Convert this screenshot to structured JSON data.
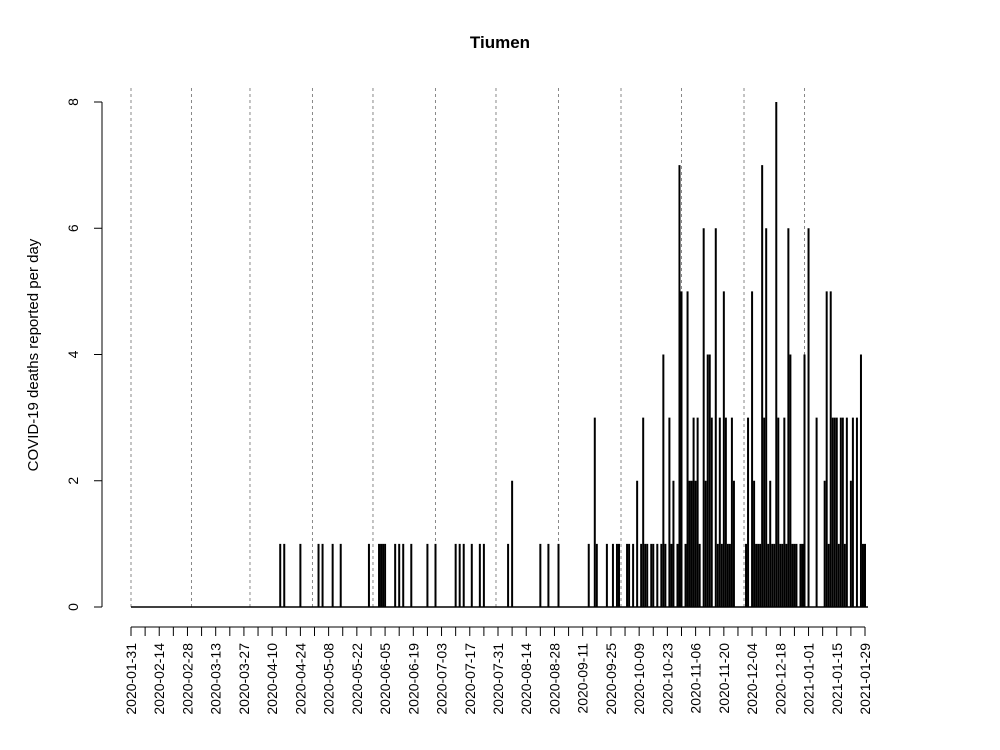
{
  "chart_data": {
    "type": "bar",
    "title": "Tiumen",
    "xlabel": "",
    "ylabel": "COVID-19 deaths reported per day",
    "x_start": "2020-01-31",
    "x_end": "2021-01-29",
    "ylim": [
      0,
      8
    ],
    "yticks": [
      0,
      2,
      4,
      6,
      8
    ],
    "xticks": [
      "2020-01-31",
      "2020-02-14",
      "2020-02-28",
      "2020-03-13",
      "2020-03-27",
      "2020-04-10",
      "2020-04-24",
      "2020-05-08",
      "2020-05-22",
      "2020-06-05",
      "2020-06-19",
      "2020-07-03",
      "2020-07-17",
      "2020-07-31",
      "2020-08-14",
      "2020-08-28",
      "2020-09-11",
      "2020-09-25",
      "2020-10-09",
      "2020-10-23",
      "2020-11-06",
      "2020-11-20",
      "2020-12-04",
      "2020-12-18",
      "2021-01-01",
      "2021-01-15",
      "2021-01-29"
    ],
    "vlines": [
      "2020-01-31",
      "2020-03-01",
      "2020-03-30",
      "2020-04-30",
      "2020-05-30",
      "2020-06-30",
      "2020-07-30",
      "2020-08-30",
      "2020-09-30",
      "2020-10-30",
      "2020-11-30",
      "2020-12-30"
    ],
    "points": [
      [
        "2020-04-14",
        1
      ],
      [
        "2020-04-16",
        1
      ],
      [
        "2020-04-24",
        1
      ],
      [
        "2020-05-03",
        1
      ],
      [
        "2020-05-05",
        1
      ],
      [
        "2020-05-10",
        1
      ],
      [
        "2020-05-14",
        1
      ],
      [
        "2020-05-28",
        1
      ],
      [
        "2020-06-02",
        1
      ],
      [
        "2020-06-03",
        1
      ],
      [
        "2020-06-04",
        1
      ],
      [
        "2020-06-05",
        1
      ],
      [
        "2020-06-10",
        1
      ],
      [
        "2020-06-12",
        1
      ],
      [
        "2020-06-14",
        1
      ],
      [
        "2020-06-18",
        1
      ],
      [
        "2020-06-26",
        1
      ],
      [
        "2020-06-30",
        1
      ],
      [
        "2020-07-10",
        1
      ],
      [
        "2020-07-12",
        1
      ],
      [
        "2020-07-14",
        1
      ],
      [
        "2020-07-18",
        1
      ],
      [
        "2020-07-22",
        1
      ],
      [
        "2020-07-24",
        1
      ],
      [
        "2020-08-05",
        1
      ],
      [
        "2020-08-07",
        2
      ],
      [
        "2020-08-21",
        1
      ],
      [
        "2020-08-25",
        1
      ],
      [
        "2020-08-30",
        1
      ],
      [
        "2020-09-14",
        1
      ],
      [
        "2020-09-17",
        3
      ],
      [
        "2020-09-18",
        1
      ],
      [
        "2020-09-23",
        1
      ],
      [
        "2020-09-26",
        1
      ],
      [
        "2020-09-28",
        1
      ],
      [
        "2020-09-29",
        1
      ],
      [
        "2020-10-03",
        1
      ],
      [
        "2020-10-04",
        1
      ],
      [
        "2020-10-06",
        1
      ],
      [
        "2020-10-08",
        2
      ],
      [
        "2020-10-10",
        1
      ],
      [
        "2020-10-11",
        3
      ],
      [
        "2020-10-12",
        1
      ],
      [
        "2020-10-13",
        1
      ],
      [
        "2020-10-15",
        1
      ],
      [
        "2020-10-16",
        1
      ],
      [
        "2020-10-18",
        1
      ],
      [
        "2020-10-20",
        1
      ],
      [
        "2020-10-21",
        4
      ],
      [
        "2020-10-22",
        1
      ],
      [
        "2020-10-24",
        3
      ],
      [
        "2020-10-25",
        1
      ],
      [
        "2020-10-26",
        2
      ],
      [
        "2020-10-28",
        1
      ],
      [
        "2020-10-29",
        7
      ],
      [
        "2020-10-30",
        5
      ],
      [
        "2020-11-01",
        1
      ],
      [
        "2020-11-02",
        5
      ],
      [
        "2020-11-03",
        2
      ],
      [
        "2020-11-04",
        2
      ],
      [
        "2020-11-05",
        3
      ],
      [
        "2020-11-06",
        2
      ],
      [
        "2020-11-07",
        3
      ],
      [
        "2020-11-08",
        1
      ],
      [
        "2020-11-10",
        6
      ],
      [
        "2020-11-11",
        2
      ],
      [
        "2020-11-12",
        4
      ],
      [
        "2020-11-13",
        4
      ],
      [
        "2020-11-14",
        3
      ],
      [
        "2020-11-16",
        6
      ],
      [
        "2020-11-17",
        1
      ],
      [
        "2020-11-18",
        3
      ],
      [
        "2020-11-19",
        1
      ],
      [
        "2020-11-20",
        5
      ],
      [
        "2020-11-21",
        3
      ],
      [
        "2020-11-22",
        1
      ],
      [
        "2020-11-23",
        1
      ],
      [
        "2020-11-24",
        3
      ],
      [
        "2020-11-25",
        2
      ],
      [
        "2020-12-01",
        1
      ],
      [
        "2020-12-02",
        3
      ],
      [
        "2020-12-04",
        5
      ],
      [
        "2020-12-05",
        2
      ],
      [
        "2020-12-06",
        1
      ],
      [
        "2020-12-07",
        1
      ],
      [
        "2020-12-08",
        1
      ],
      [
        "2020-12-09",
        7
      ],
      [
        "2020-12-10",
        3
      ],
      [
        "2020-12-11",
        6
      ],
      [
        "2020-12-12",
        1
      ],
      [
        "2020-12-13",
        2
      ],
      [
        "2020-12-14",
        1
      ],
      [
        "2020-12-15",
        1
      ],
      [
        "2020-12-16",
        8
      ],
      [
        "2020-12-17",
        3
      ],
      [
        "2020-12-18",
        1
      ],
      [
        "2020-12-19",
        1
      ],
      [
        "2020-12-20",
        3
      ],
      [
        "2020-12-21",
        1
      ],
      [
        "2020-12-22",
        6
      ],
      [
        "2020-12-23",
        4
      ],
      [
        "2020-12-24",
        1
      ],
      [
        "2020-12-25",
        1
      ],
      [
        "2020-12-26",
        1
      ],
      [
        "2020-12-28",
        1
      ],
      [
        "2020-12-29",
        1
      ],
      [
        "2020-12-30",
        4
      ],
      [
        "2021-01-01",
        6
      ],
      [
        "2021-01-05",
        3
      ],
      [
        "2021-01-09",
        2
      ],
      [
        "2021-01-10",
        5
      ],
      [
        "2021-01-11",
        1
      ],
      [
        "2021-01-12",
        5
      ],
      [
        "2021-01-13",
        3
      ],
      [
        "2021-01-14",
        3
      ],
      [
        "2021-01-15",
        3
      ],
      [
        "2021-01-16",
        1
      ],
      [
        "2021-01-17",
        3
      ],
      [
        "2021-01-18",
        3
      ],
      [
        "2021-01-19",
        1
      ],
      [
        "2021-01-20",
        3
      ],
      [
        "2021-01-22",
        2
      ],
      [
        "2021-01-23",
        3
      ],
      [
        "2021-01-25",
        3
      ],
      [
        "2021-01-27",
        4
      ],
      [
        "2021-01-28",
        1
      ],
      [
        "2021-01-29",
        1
      ]
    ]
  }
}
